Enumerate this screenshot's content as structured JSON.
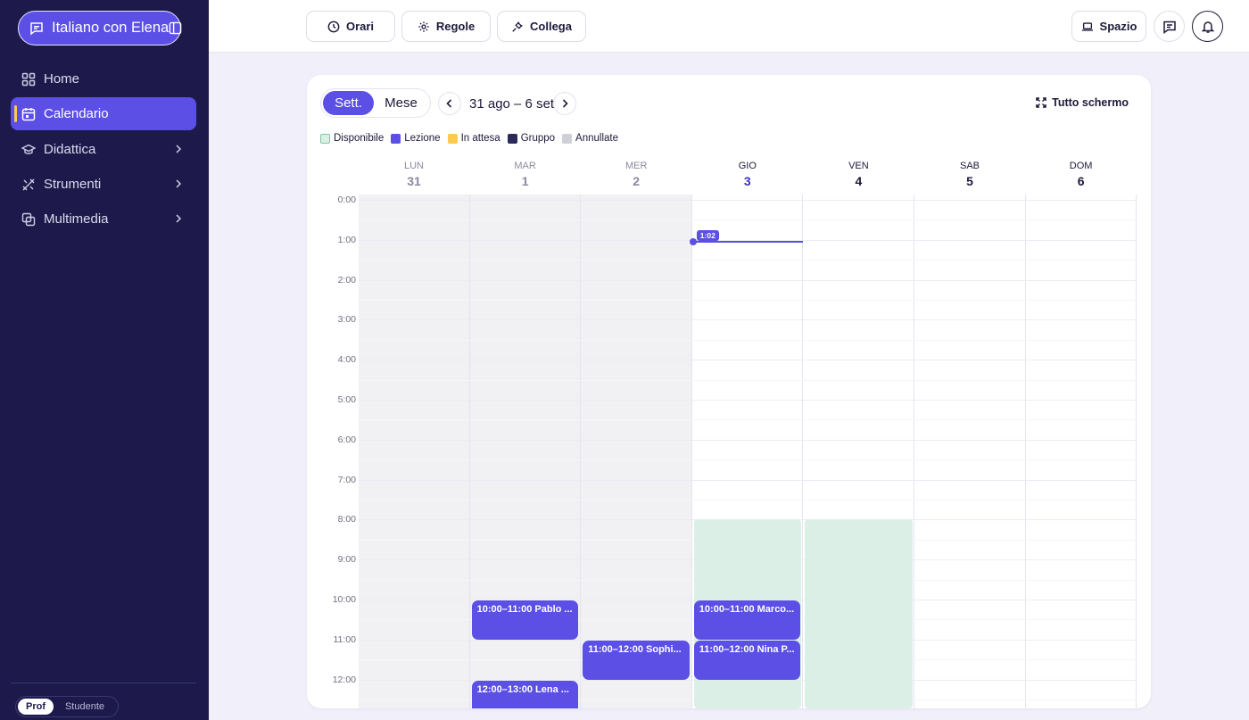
{
  "sidebar": {
    "brand": "Italiano con Elena",
    "items": [
      {
        "label": "Home",
        "icon": "grid-icon"
      },
      {
        "label": "Calendario",
        "icon": "calendar-icon",
        "active": true
      },
      {
        "label": "Didattica",
        "icon": "graduation-cap-icon",
        "has_submenu": true
      },
      {
        "label": "Strumenti",
        "icon": "tools-icon",
        "has_submenu": true
      },
      {
        "label": "Multimedia",
        "icon": "media-icon",
        "has_submenu": true
      }
    ],
    "role_toggle": {
      "selected": "Prof",
      "other": "Studente"
    }
  },
  "topbar": {
    "orari": "Orari",
    "regole": "Regole",
    "collega": "Collega",
    "spazio": "Spazio"
  },
  "calendar": {
    "view_week": "Sett.",
    "view_month": "Mese",
    "range": "31 ago – 6 set",
    "fullscreen": "Tutto schermo",
    "legend": [
      {
        "label": "Disponibile",
        "color": "#dcefe7",
        "border": "#7fc7a6"
      },
      {
        "label": "Lezione",
        "color": "#5b4fe6"
      },
      {
        "label": "In attesa",
        "color": "#ffc94d"
      },
      {
        "label": "Gruppo",
        "color": "#2c2a5a"
      },
      {
        "label": "Annullate",
        "color": "#cfcfd8"
      }
    ],
    "days": [
      {
        "dow": "LUN",
        "num": "31",
        "state": "past"
      },
      {
        "dow": "MAR",
        "num": "1",
        "state": "past"
      },
      {
        "dow": "MER",
        "num": "2",
        "state": "past"
      },
      {
        "dow": "GIO",
        "num": "3",
        "state": "today"
      },
      {
        "dow": "VEN",
        "num": "4",
        "state": "future"
      },
      {
        "dow": "SAB",
        "num": "5",
        "state": "future"
      },
      {
        "dow": "DOM",
        "num": "6",
        "state": "future"
      }
    ],
    "hours": [
      "0:00",
      "1:00",
      "2:00",
      "3:00",
      "4:00",
      "5:00",
      "6:00",
      "7:00",
      "8:00",
      "9:00",
      "10:00",
      "11:00",
      "12:00"
    ],
    "now": "1:02",
    "availability": [
      {
        "day": 3,
        "start": 8,
        "end": 13
      },
      {
        "day": 4,
        "start": 8,
        "end": 13
      }
    ],
    "events": [
      {
        "day": 1,
        "start": 10,
        "end": 11,
        "label": "10:00–11:00 Pablo ..."
      },
      {
        "day": 2,
        "start": 11,
        "end": 12,
        "label": "11:00–12:00 Sophi..."
      },
      {
        "day": 1,
        "start": 12,
        "end": 13,
        "label": "12:00–13:00 Lena ..."
      },
      {
        "day": 3,
        "start": 10,
        "end": 11,
        "label": "10:00–11:00 Marco..."
      },
      {
        "day": 3,
        "start": 11,
        "end": 12,
        "label": "11:00–12:00 Nina P..."
      }
    ]
  }
}
